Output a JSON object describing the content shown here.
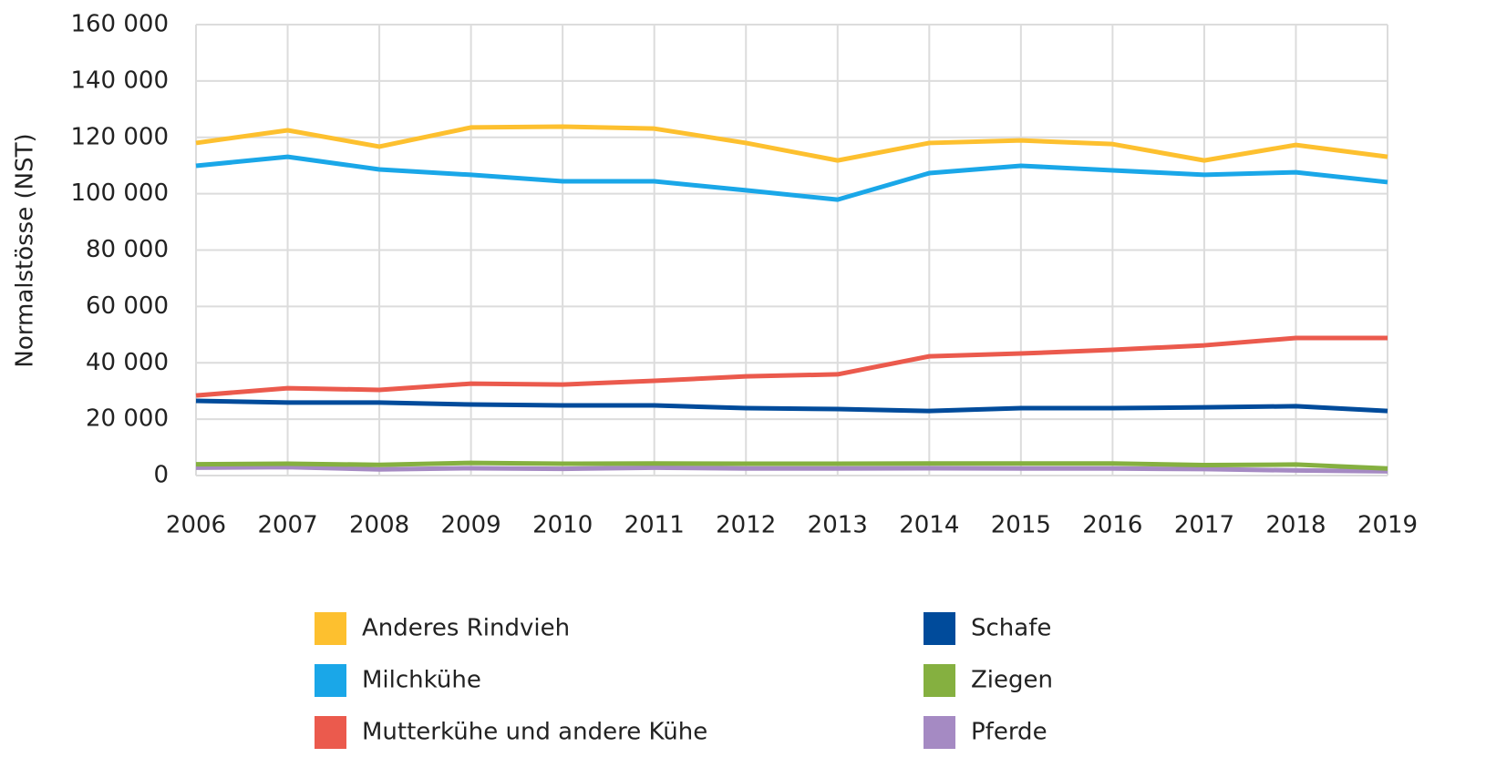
{
  "chart_data": {
    "type": "line",
    "y_label": "Normalstösse (NST)",
    "categories": [
      "2006",
      "2007",
      "2008",
      "2009",
      "2010",
      "2011",
      "2012",
      "2013",
      "2014",
      "2015",
      "2016",
      "2017",
      "2018",
      "2019"
    ],
    "series": [
      {
        "name": "Anderes Rindvieh",
        "color": "#fdc02f",
        "values": [
          118000,
          122500,
          116700,
          123500,
          123800,
          123100,
          118000,
          111800,
          118000,
          118900,
          117600,
          111800,
          117300,
          113100
        ]
      },
      {
        "name": "Milchkühe",
        "color": "#1aa7e8",
        "values": [
          109900,
          113100,
          108600,
          106700,
          104400,
          104400,
          101200,
          97900,
          107300,
          109900,
          108300,
          106700,
          107600,
          104100
        ]
      },
      {
        "name": "Mutterkühe und andere Kühe",
        "color": "#eb5a4d",
        "values": [
          28400,
          31000,
          30400,
          32600,
          32300,
          33600,
          35200,
          35900,
          42300,
          43300,
          44600,
          46200,
          48800,
          48800
        ]
      },
      {
        "name": "Schafe",
        "color": "#004b9b",
        "values": [
          26500,
          25900,
          25900,
          25200,
          24900,
          24900,
          23900,
          23600,
          22900,
          23900,
          23900,
          24200,
          24600,
          22900
        ]
      },
      {
        "name": "Ziegen",
        "color": "#85b040",
        "values": [
          4000,
          4200,
          3800,
          4500,
          4200,
          4300,
          4200,
          4200,
          4300,
          4300,
          4300,
          3700,
          3900,
          2500
        ]
      },
      {
        "name": "Pferde",
        "color": "#a58ac3",
        "values": [
          2800,
          3000,
          2200,
          2600,
          2400,
          2800,
          2500,
          2500,
          2600,
          2500,
          2500,
          2300,
          1800,
          1500
        ]
      }
    ],
    "ylim": [
      0,
      160000
    ],
    "yticks": [
      0,
      {
        "value": 20000,
        "label": "20 000"
      },
      {
        "value": 40000,
        "label": "40 000"
      },
      {
        "value": 60000,
        "label": "60 000"
      },
      {
        "value": 80000,
        "label": "80 000"
      },
      {
        "value": 100000,
        "label": "100 000"
      },
      {
        "value": 120000,
        "label": "120 000"
      },
      {
        "value": 140000,
        "label": "140 000"
      },
      {
        "value": 160000,
        "label": "160 000"
      }
    ],
    "grid": true
  }
}
